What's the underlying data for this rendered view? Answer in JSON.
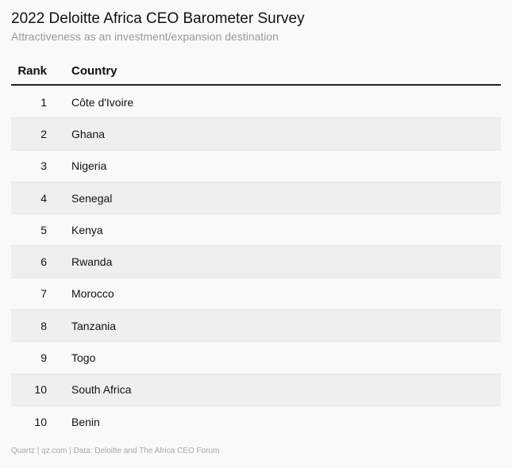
{
  "title": "2022 Deloitte Africa CEO Barometer Survey",
  "subtitle": "Attractiveness as an investment/expansion destination",
  "footer": "Quartz | qz.com | Data: Deloitte and The Africa CEO Forum",
  "chart_data": {
    "type": "table",
    "title": "2022 Deloitte Africa CEO Barometer Survey",
    "subtitle": "Attractiveness as an investment/expansion destination",
    "columns": [
      "Rank",
      "Country"
    ],
    "rows": [
      {
        "rank": "1",
        "country": "Côte d'Ivoire"
      },
      {
        "rank": "2",
        "country": "Ghana"
      },
      {
        "rank": "3",
        "country": "Nigeria"
      },
      {
        "rank": "4",
        "country": "Senegal"
      },
      {
        "rank": "5",
        "country": "Kenya"
      },
      {
        "rank": "6",
        "country": "Rwanda"
      },
      {
        "rank": "7",
        "country": "Morocco"
      },
      {
        "rank": "8",
        "country": "Tanzania"
      },
      {
        "rank": "9",
        "country": "Togo"
      },
      {
        "rank": "10",
        "country": "South Africa"
      },
      {
        "rank": "10",
        "country": "Benin"
      }
    ]
  }
}
